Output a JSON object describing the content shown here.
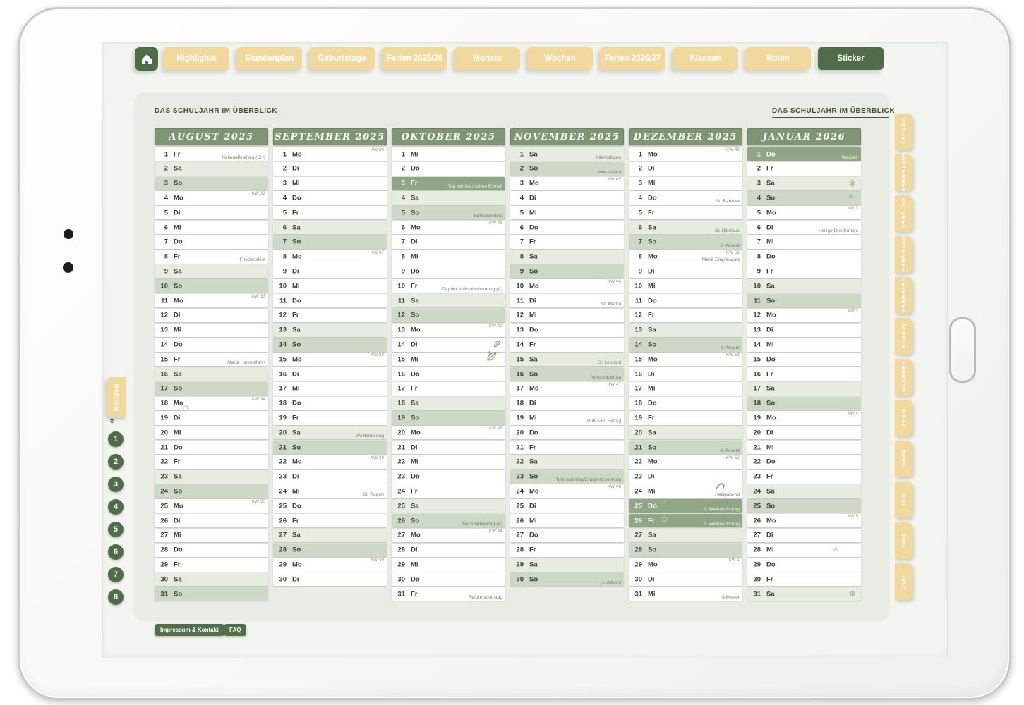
{
  "nav": {
    "tabs": [
      "Highlights",
      "Stundenplan",
      "Geburtstage",
      "Ferien 2025/26",
      "Monate",
      "Wochen",
      "Ferien 2026/27",
      "Klassen",
      "Noten",
      "Sticker"
    ],
    "active_tab": "Sticker"
  },
  "overview": {
    "title_left": "DAS SCHULJAHR IM ÜBERBLICK",
    "title_right": "DAS SCHULJAHR IM ÜBERBLICK"
  },
  "months": [
    {
      "name": "AUGUST 2025",
      "days": [
        {
          "d": 1,
          "w": "Fr",
          "n": "Nationalfeiertag (CH)"
        },
        {
          "d": 2,
          "w": "Sa"
        },
        {
          "d": 3,
          "w": "So"
        },
        {
          "d": 4,
          "w": "Mo",
          "k": "KW 32"
        },
        {
          "d": 5,
          "w": "Di"
        },
        {
          "d": 6,
          "w": "Mi"
        },
        {
          "d": 7,
          "w": "Do"
        },
        {
          "d": 8,
          "w": "Fr",
          "n": "Friedensfest"
        },
        {
          "d": 9,
          "w": "Sa"
        },
        {
          "d": 10,
          "w": "So"
        },
        {
          "d": 11,
          "w": "Mo",
          "k": "KW 33"
        },
        {
          "d": 12,
          "w": "Di"
        },
        {
          "d": 13,
          "w": "Mi"
        },
        {
          "d": 14,
          "w": "Do"
        },
        {
          "d": 15,
          "w": "Fr",
          "n": "Mariä Himmelfahrt"
        },
        {
          "d": 16,
          "w": "Sa"
        },
        {
          "d": 17,
          "w": "So"
        },
        {
          "d": 18,
          "w": "Mo",
          "k": "KW 34",
          "s": "sun"
        },
        {
          "d": 19,
          "w": "Di"
        },
        {
          "d": 20,
          "w": "Mi"
        },
        {
          "d": 21,
          "w": "Do"
        },
        {
          "d": 22,
          "w": "Fr"
        },
        {
          "d": 23,
          "w": "Sa"
        },
        {
          "d": 24,
          "w": "So"
        },
        {
          "d": 25,
          "w": "Mo",
          "k": "KW 35"
        },
        {
          "d": 26,
          "w": "Di"
        },
        {
          "d": 27,
          "w": "Mi"
        },
        {
          "d": 28,
          "w": "Do"
        },
        {
          "d": 29,
          "w": "Fr"
        },
        {
          "d": 30,
          "w": "Sa"
        },
        {
          "d": 31,
          "w": "So"
        }
      ]
    },
    {
      "name": "SEPTEMBER 2025",
      "days": [
        {
          "d": 1,
          "w": "Mo",
          "k": "KW 36"
        },
        {
          "d": 2,
          "w": "Di"
        },
        {
          "d": 3,
          "w": "Mi"
        },
        {
          "d": 4,
          "w": "Do"
        },
        {
          "d": 5,
          "w": "Fr"
        },
        {
          "d": 6,
          "w": "Sa"
        },
        {
          "d": 7,
          "w": "So"
        },
        {
          "d": 8,
          "w": "Mo",
          "k": "KW 37"
        },
        {
          "d": 9,
          "w": "Di"
        },
        {
          "d": 10,
          "w": "Mi"
        },
        {
          "d": 11,
          "w": "Do"
        },
        {
          "d": 12,
          "w": "Fr"
        },
        {
          "d": 13,
          "w": "Sa"
        },
        {
          "d": 14,
          "w": "So"
        },
        {
          "d": 15,
          "w": "Mo",
          "k": "KW 38"
        },
        {
          "d": 16,
          "w": "Di"
        },
        {
          "d": 17,
          "w": "Mi"
        },
        {
          "d": 18,
          "w": "Do"
        },
        {
          "d": 19,
          "w": "Fr"
        },
        {
          "d": 20,
          "w": "Sa",
          "n": "Weltkindertag"
        },
        {
          "d": 21,
          "w": "So"
        },
        {
          "d": 22,
          "w": "Mo",
          "k": "KW 39"
        },
        {
          "d": 23,
          "w": "Di"
        },
        {
          "d": 24,
          "w": "Mi",
          "n": "St. Rupert"
        },
        {
          "d": 25,
          "w": "Do"
        },
        {
          "d": 26,
          "w": "Fr"
        },
        {
          "d": 27,
          "w": "Sa"
        },
        {
          "d": 28,
          "w": "So"
        },
        {
          "d": 29,
          "w": "Mo",
          "k": "KW 40"
        },
        {
          "d": 30,
          "w": "Di"
        }
      ]
    },
    {
      "name": "OKTOBER 2025",
      "days": [
        {
          "d": 1,
          "w": "Mi"
        },
        {
          "d": 2,
          "w": "Do"
        },
        {
          "d": 3,
          "w": "Fr",
          "h": true,
          "n": "Tag der Deutschen Einheit"
        },
        {
          "d": 4,
          "w": "Sa"
        },
        {
          "d": 5,
          "w": "So",
          "n": "Erntedankfest"
        },
        {
          "d": 6,
          "w": "Mo",
          "k": "KW 41"
        },
        {
          "d": 7,
          "w": "Di"
        },
        {
          "d": 8,
          "w": "Mi"
        },
        {
          "d": 9,
          "w": "Do"
        },
        {
          "d": 10,
          "w": "Fr",
          "n": "Tag der Volksabstimmung (A)"
        },
        {
          "d": 11,
          "w": "Sa"
        },
        {
          "d": 12,
          "w": "So"
        },
        {
          "d": 13,
          "w": "Mo",
          "k": "KW 42"
        },
        {
          "d": 14,
          "w": "Di",
          "s": "leaf"
        },
        {
          "d": 15,
          "w": "Mi",
          "s": "leaf-large"
        },
        {
          "d": 16,
          "w": "Do"
        },
        {
          "d": 17,
          "w": "Fr"
        },
        {
          "d": 18,
          "w": "Sa"
        },
        {
          "d": 19,
          "w": "So"
        },
        {
          "d": 20,
          "w": "Mo",
          "k": "KW 43"
        },
        {
          "d": 21,
          "w": "Di"
        },
        {
          "d": 22,
          "w": "Mi"
        },
        {
          "d": 23,
          "w": "Do"
        },
        {
          "d": 24,
          "w": "Fr"
        },
        {
          "d": 25,
          "w": "Sa"
        },
        {
          "d": 26,
          "w": "So",
          "n": "Nationalfeiertag (A)"
        },
        {
          "d": 27,
          "w": "Mo",
          "k": "KW 44"
        },
        {
          "d": 28,
          "w": "Di"
        },
        {
          "d": 29,
          "w": "Mi"
        },
        {
          "d": 30,
          "w": "Do"
        },
        {
          "d": 31,
          "w": "Fr",
          "n": "Reformationstag"
        }
      ]
    },
    {
      "name": "NOVEMBER 2025",
      "days": [
        {
          "d": 1,
          "w": "Sa",
          "n": "Allerheiligen"
        },
        {
          "d": 2,
          "w": "So",
          "n": "Allerseelen"
        },
        {
          "d": 3,
          "w": "Mo",
          "k": "KW 45"
        },
        {
          "d": 4,
          "w": "Di"
        },
        {
          "d": 5,
          "w": "Mi"
        },
        {
          "d": 6,
          "w": "Do"
        },
        {
          "d": 7,
          "w": "Fr"
        },
        {
          "d": 8,
          "w": "Sa"
        },
        {
          "d": 9,
          "w": "So"
        },
        {
          "d": 10,
          "w": "Mo",
          "k": "KW 46"
        },
        {
          "d": 11,
          "w": "Di",
          "n": "St. Martin"
        },
        {
          "d": 12,
          "w": "Mi"
        },
        {
          "d": 13,
          "w": "Do"
        },
        {
          "d": 14,
          "w": "Fr"
        },
        {
          "d": 15,
          "w": "Sa",
          "n": "St. Leopold"
        },
        {
          "d": 16,
          "w": "So",
          "n": "Volkstrauertag"
        },
        {
          "d": 17,
          "w": "Mo",
          "k": "KW 47"
        },
        {
          "d": 18,
          "w": "Di"
        },
        {
          "d": 19,
          "w": "Mi",
          "n": "Buß- und Bettag"
        },
        {
          "d": 20,
          "w": "Do"
        },
        {
          "d": 21,
          "w": "Fr"
        },
        {
          "d": 22,
          "w": "Sa"
        },
        {
          "d": 23,
          "w": "So",
          "n": "Totensonntag/Ewigkeitssonntag"
        },
        {
          "d": 24,
          "w": "Mo",
          "k": "KW 48"
        },
        {
          "d": 25,
          "w": "Di"
        },
        {
          "d": 26,
          "w": "Mi"
        },
        {
          "d": 27,
          "w": "Do"
        },
        {
          "d": 28,
          "w": "Fr"
        },
        {
          "d": 29,
          "w": "Sa"
        },
        {
          "d": 30,
          "w": "So",
          "n": "1. Advent"
        }
      ]
    },
    {
      "name": "DEZEMBER 2025",
      "days": [
        {
          "d": 1,
          "w": "Mo",
          "k": "KW 49"
        },
        {
          "d": 2,
          "w": "Di"
        },
        {
          "d": 3,
          "w": "Mi"
        },
        {
          "d": 4,
          "w": "Do",
          "n": "St. Barbara"
        },
        {
          "d": 5,
          "w": "Fr"
        },
        {
          "d": 6,
          "w": "Sa",
          "n": "St. Nikolaus"
        },
        {
          "d": 7,
          "w": "So",
          "n": "2. Advent"
        },
        {
          "d": 8,
          "w": "Mo",
          "k": "KW 50",
          "n": "Mariä Empfängnis"
        },
        {
          "d": 9,
          "w": "Di"
        },
        {
          "d": 10,
          "w": "Mi"
        },
        {
          "d": 11,
          "w": "Do"
        },
        {
          "d": 12,
          "w": "Fr"
        },
        {
          "d": 13,
          "w": "Sa"
        },
        {
          "d": 14,
          "w": "So",
          "n": "3. Advent"
        },
        {
          "d": 15,
          "w": "Mo",
          "k": "KW 51"
        },
        {
          "d": 16,
          "w": "Di"
        },
        {
          "d": 17,
          "w": "Mi"
        },
        {
          "d": 18,
          "w": "Do"
        },
        {
          "d": 19,
          "w": "Fr"
        },
        {
          "d": 20,
          "w": "Sa"
        },
        {
          "d": 21,
          "w": "So",
          "n": "4. Advent"
        },
        {
          "d": 22,
          "w": "Mo",
          "k": "KW 52"
        },
        {
          "d": 23,
          "w": "Di"
        },
        {
          "d": 24,
          "w": "Mi",
          "n": "Heiligabend",
          "s": "candy-cane"
        },
        {
          "d": 25,
          "w": "Do",
          "h": true,
          "n": "1. Weihnachtstag",
          "s": "stars"
        },
        {
          "d": 26,
          "w": "Fr",
          "h": true,
          "n": "2. Weihnachtstag",
          "s": "star"
        },
        {
          "d": 27,
          "w": "Sa"
        },
        {
          "d": 28,
          "w": "So"
        },
        {
          "d": 29,
          "w": "Mo",
          "k": "KW 1"
        },
        {
          "d": 30,
          "w": "Di"
        },
        {
          "d": 31,
          "w": "Mi",
          "n": "Silvester"
        }
      ]
    },
    {
      "name": "JANUAR 2026",
      "days": [
        {
          "d": 1,
          "w": "Do",
          "h": true,
          "n": "Neujahr"
        },
        {
          "d": 2,
          "w": "Fr"
        },
        {
          "d": 3,
          "w": "Sa",
          "s": "snowflake"
        },
        {
          "d": 4,
          "w": "So",
          "s": "snowflake-small"
        },
        {
          "d": 5,
          "w": "Mo",
          "k": "KW 2"
        },
        {
          "d": 6,
          "w": "Di",
          "n": "Heilige Drei Könige"
        },
        {
          "d": 7,
          "w": "Mi"
        },
        {
          "d": 8,
          "w": "Do"
        },
        {
          "d": 9,
          "w": "Fr"
        },
        {
          "d": 10,
          "w": "Sa"
        },
        {
          "d": 11,
          "w": "So"
        },
        {
          "d": 12,
          "w": "Mo",
          "k": "KW 3"
        },
        {
          "d": 13,
          "w": "Di"
        },
        {
          "d": 14,
          "w": "Mi"
        },
        {
          "d": 15,
          "w": "Do"
        },
        {
          "d": 16,
          "w": "Fr"
        },
        {
          "d": 17,
          "w": "Sa"
        },
        {
          "d": 18,
          "w": "So"
        },
        {
          "d": 19,
          "w": "Mo",
          "k": "KW 4"
        },
        {
          "d": 20,
          "w": "Di"
        },
        {
          "d": 21,
          "w": "Mi"
        },
        {
          "d": 22,
          "w": "Do"
        },
        {
          "d": 23,
          "w": "Fr"
        },
        {
          "d": 24,
          "w": "Sa"
        },
        {
          "d": 25,
          "w": "So"
        },
        {
          "d": 26,
          "w": "Mo",
          "k": "KW 5"
        },
        {
          "d": 27,
          "w": "Di"
        },
        {
          "d": 28,
          "w": "Mi",
          "s": "snowflake-tiny"
        },
        {
          "d": 29,
          "w": "Do"
        },
        {
          "d": 30,
          "w": "Fr"
        },
        {
          "d": 31,
          "w": "Sa",
          "s": "snowflake"
        }
      ]
    }
  ],
  "left_rail": {
    "notes_tab_label": "Notizen",
    "chevron_glyph": "»",
    "note_numbers": [
      "1",
      "2",
      "3",
      "4",
      "5",
      "6",
      "7",
      "8"
    ]
  },
  "right_rail": {
    "month_tabs": [
      "AUGUST",
      "SEPTEMBER",
      "OKTOBER",
      "NOVEMBER",
      "DEZEMBER",
      "JANUAR",
      "FEBRUAR",
      "MÄRZ",
      "APRIL",
      "MAI",
      "JUNI",
      "JULI"
    ]
  },
  "footer": {
    "impressum_label": "Impressum & Kontakt",
    "faq_label": "FAQ"
  },
  "icons": {
    "home": "⌂",
    "sun": "☼",
    "snowflake": "❄",
    "star": "☆"
  },
  "colors": {
    "tab_tan": "#f1d99d",
    "accent_dark_green": "#4f6d48",
    "month_header_green": "#7e9673",
    "saturday_row": "#e7ece1",
    "sunday_row": "#cdd9c6",
    "holiday_row": "#8fa784",
    "panel_bg": "#e9ece5",
    "screen_bg": "#f3f5f0"
  }
}
